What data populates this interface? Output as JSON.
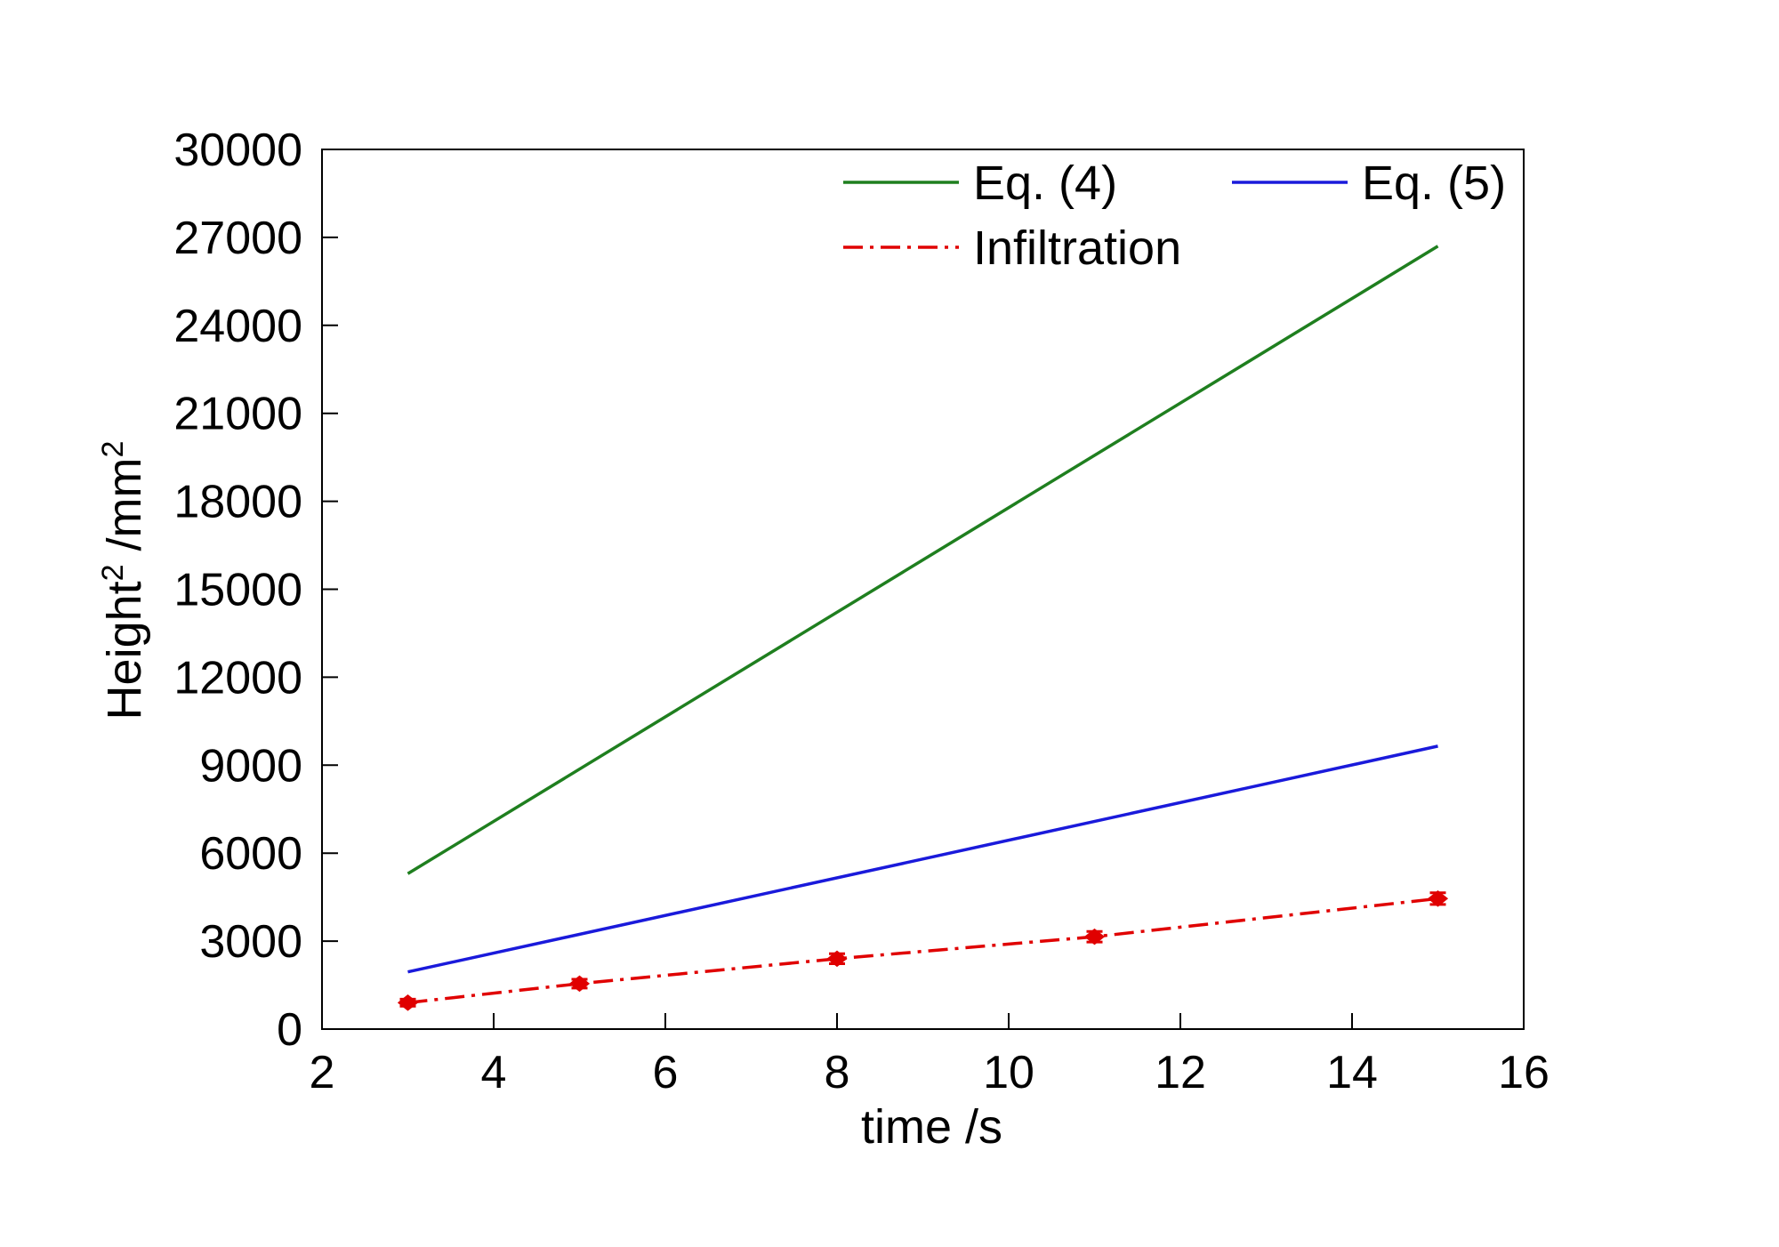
{
  "chart_data": {
    "type": "line",
    "xlabel": "time /s",
    "ylabel": {
      "base": "Height",
      "sup": "2",
      "unit": " /mm",
      "unit_sup": "2"
    },
    "xlim": [
      2,
      16
    ],
    "ylim": [
      0,
      30000
    ],
    "x_ticks": [
      2,
      4,
      6,
      8,
      10,
      12,
      14,
      16
    ],
    "y_ticks": [
      0,
      3000,
      6000,
      9000,
      12000,
      15000,
      18000,
      21000,
      24000,
      27000,
      30000
    ],
    "grid": false,
    "legend_position": "top",
    "series": [
      {
        "name": "Eq. (4)",
        "color": "#1f7f1f",
        "style": "solid",
        "markers": false,
        "x": [
          3,
          15
        ],
        "y": [
          5300,
          26700
        ]
      },
      {
        "name": "Eq. (5)",
        "color": "#1a1adb",
        "style": "solid",
        "markers": false,
        "x": [
          3,
          15
        ],
        "y": [
          1950,
          9650
        ]
      },
      {
        "name": "Infiltration",
        "color": "#e00000",
        "style": "dashdot",
        "markers": true,
        "x": [
          3,
          5,
          8,
          11,
          15
        ],
        "y": [
          900,
          1550,
          2400,
          3150,
          4450
        ],
        "error": [
          120,
          150,
          170,
          180,
          200
        ]
      }
    ]
  }
}
